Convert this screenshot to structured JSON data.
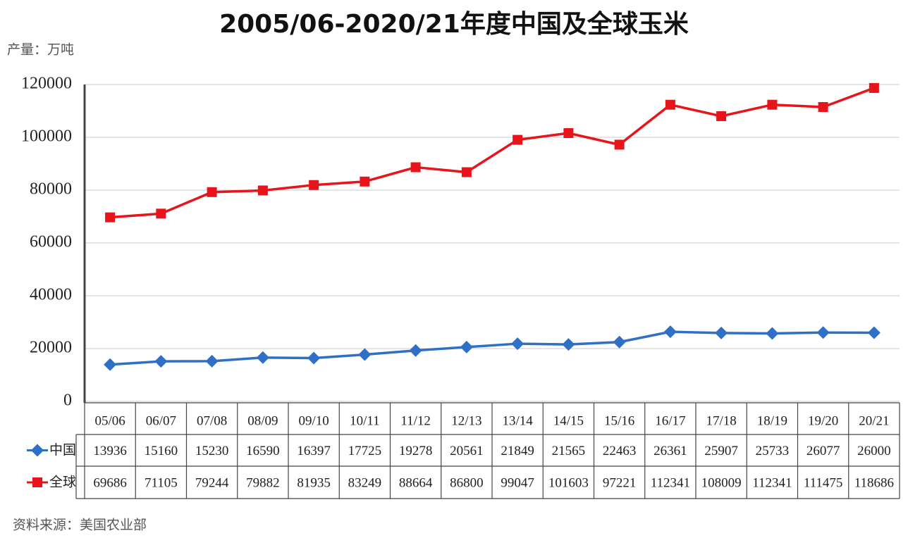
{
  "chart_data": {
    "type": "line",
    "title": "2005/06-2020/21年度中国及全球玉米",
    "y_label": "产量：万吨",
    "source": "资料来源：美国农业部",
    "categories": [
      "05/06",
      "06/07",
      "07/08",
      "08/09",
      "09/10",
      "10/11",
      "11/12",
      "12/13",
      "13/14",
      "14/15",
      "15/16",
      "16/17",
      "17/18",
      "18/19",
      "19/20",
      "20/21"
    ],
    "series": [
      {
        "name": "中国",
        "color": "#2f6fc6",
        "marker": "diamond",
        "values": [
          13936,
          15160,
          15230,
          16590,
          16397,
          17725,
          19278,
          20561,
          21849,
          21565,
          22463,
          26361,
          25907,
          25733,
          26077,
          26000
        ]
      },
      {
        "name": "全球",
        "color": "#e8141b",
        "marker": "square",
        "values": [
          69686,
          71105,
          79244,
          79882,
          81935,
          83249,
          88664,
          86800,
          99047,
          101603,
          97221,
          112341,
          108009,
          112341,
          111475,
          118686
        ]
      }
    ],
    "ylim": [
      0,
      120000
    ],
    "yticks": [
      0,
      20000,
      40000,
      60000,
      80000,
      100000,
      120000
    ],
    "grid": true
  }
}
